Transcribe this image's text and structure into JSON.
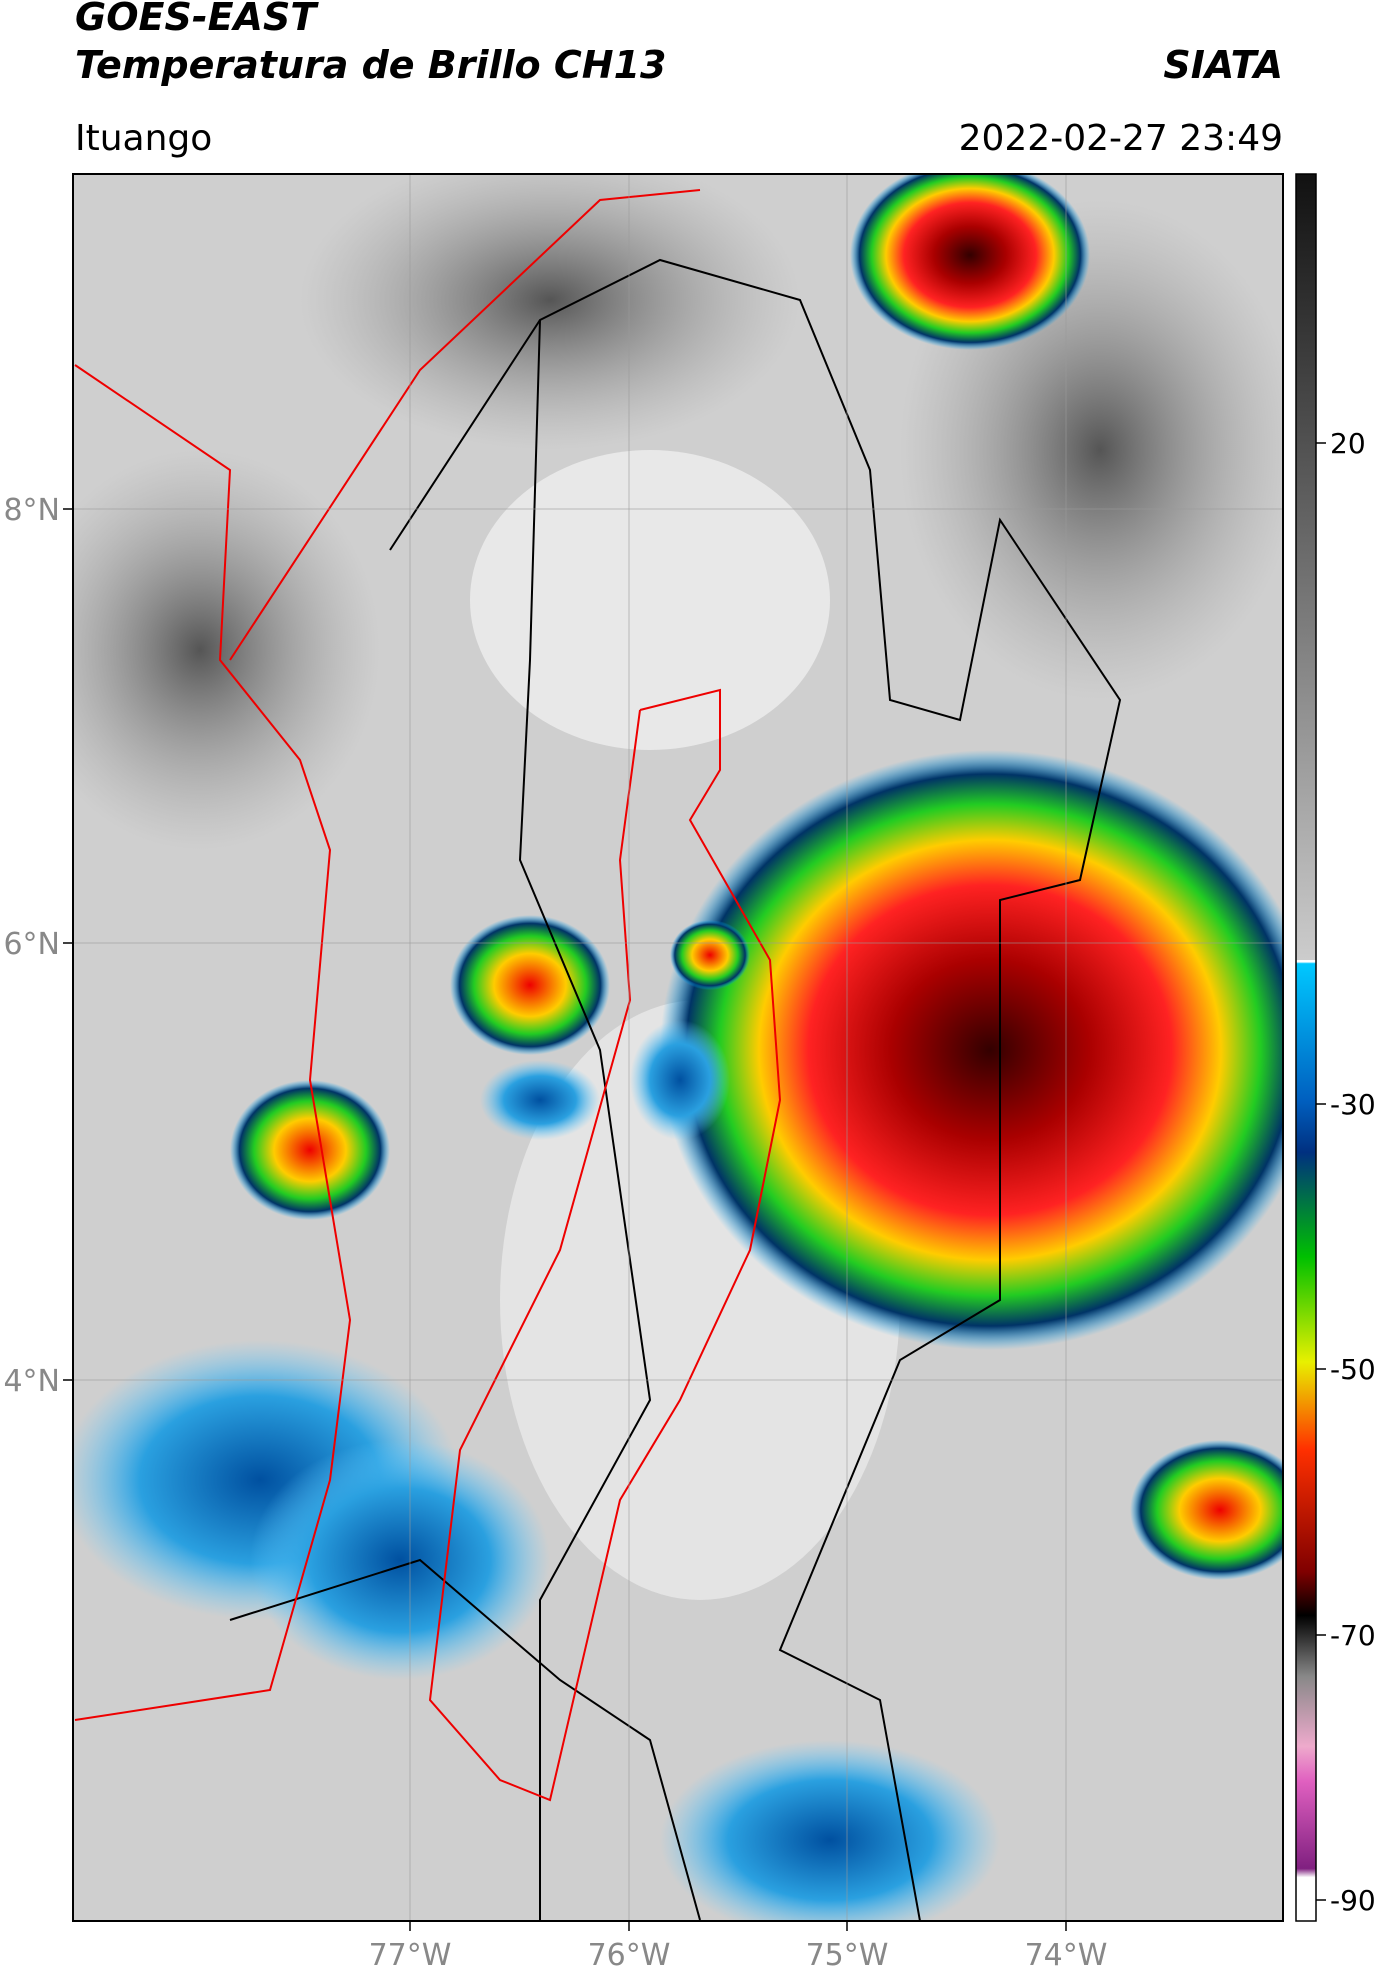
{
  "header": {
    "title": "GOES-EAST",
    "subtitle": "Temperatura de Brillo CH13",
    "source": "SIATA",
    "location": "Ituango",
    "datetime": "2022-02-27 23:49"
  },
  "map": {
    "lon_labels": [
      "77°W",
      "76°W",
      "75°W",
      "74°W"
    ],
    "lat_labels": [
      "8°N",
      "6°N",
      "4°N"
    ]
  },
  "colorbar": {
    "labels": [
      "20",
      "-30",
      "-50",
      "-70",
      "-90"
    ]
  }
}
